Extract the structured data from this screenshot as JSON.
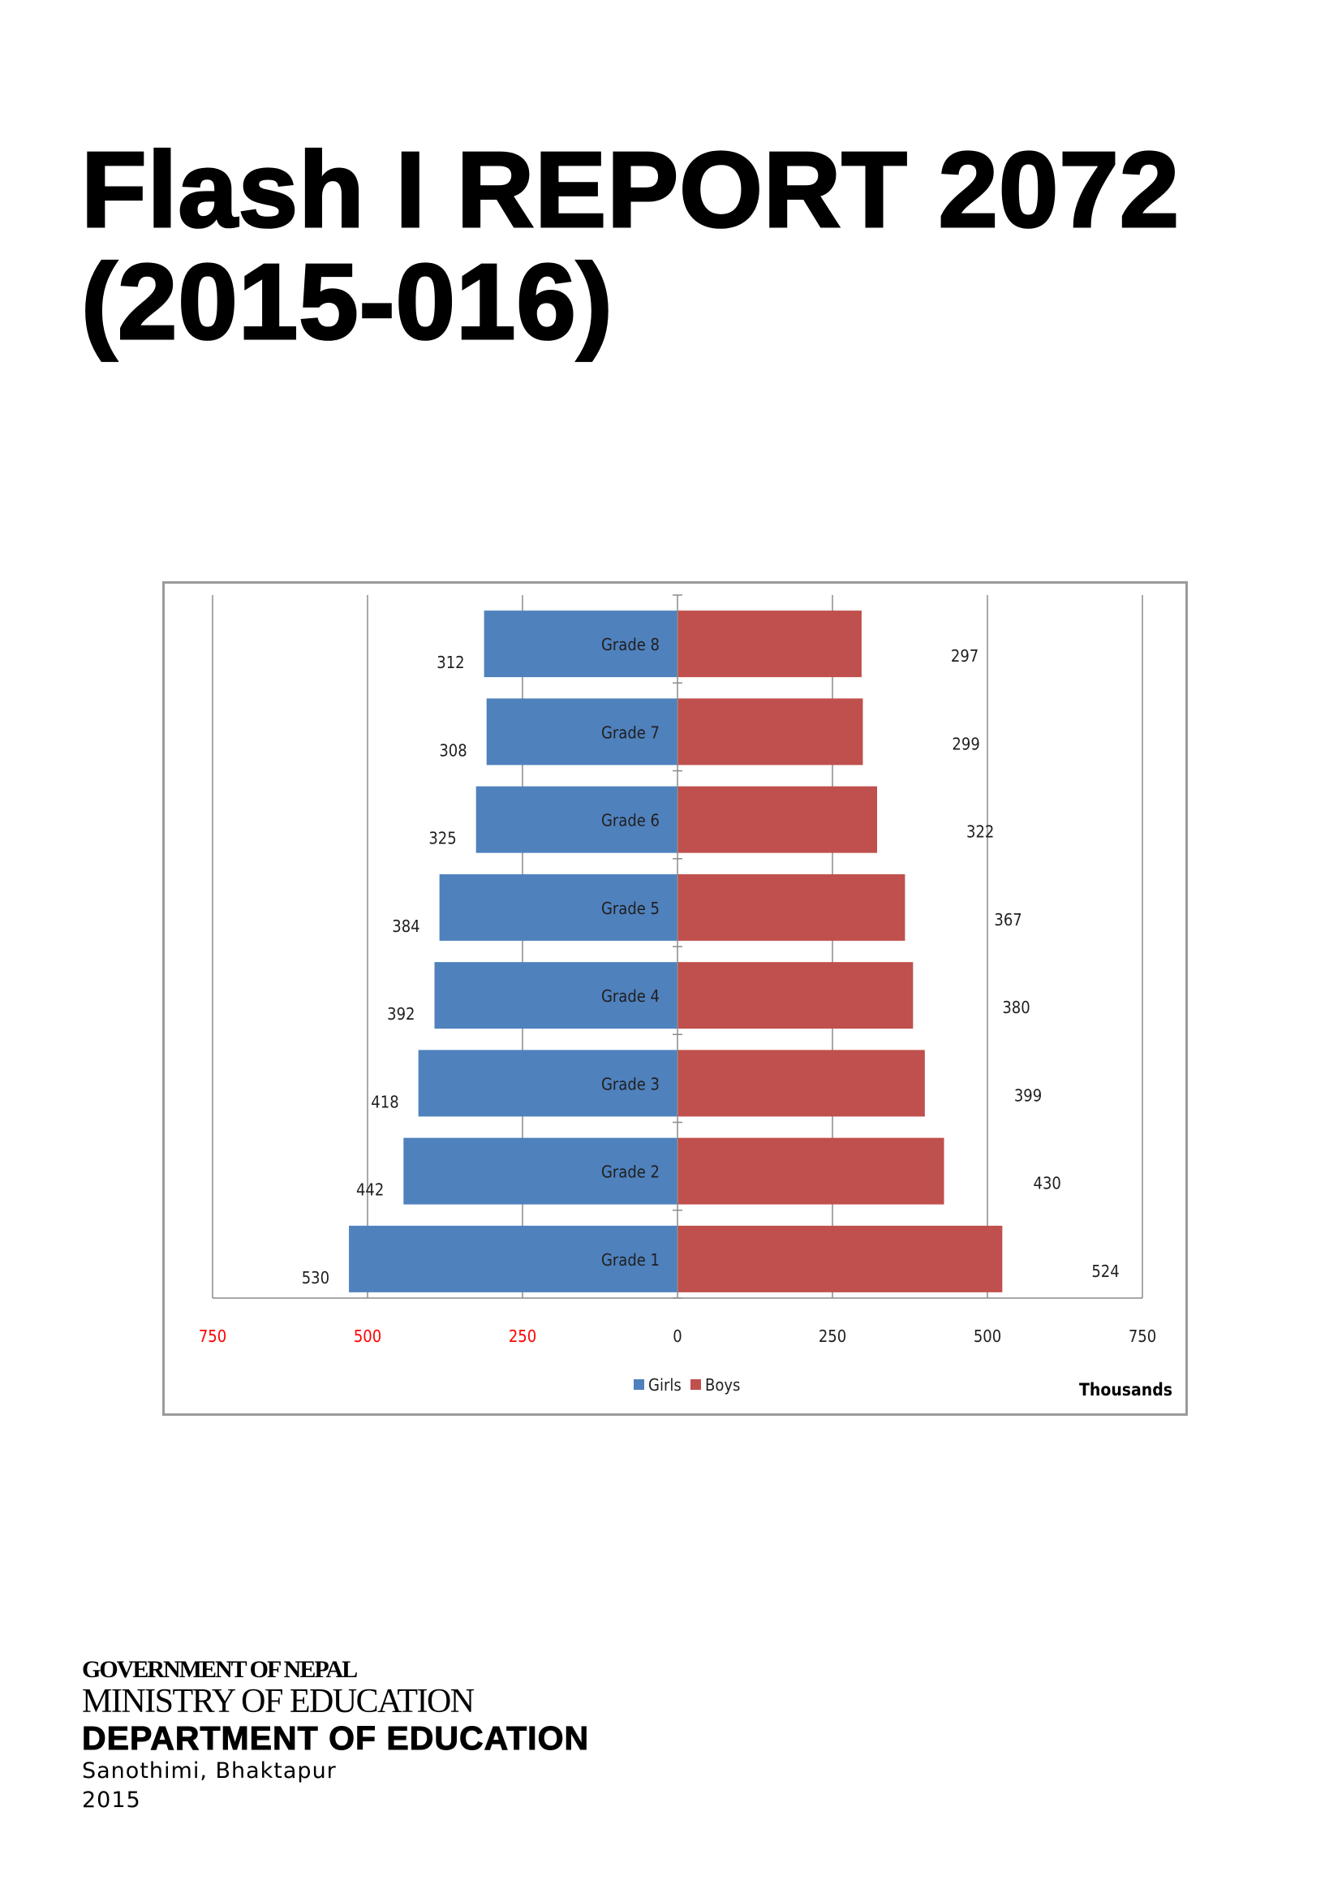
{
  "document": {
    "title_line1": "Flash I REPORT 2072",
    "title_line2": "(2015-016)"
  },
  "chart_data": {
    "type": "bar",
    "orientation": "horizontal",
    "layout": "population-pyramid",
    "categories": [
      "Grade 1",
      "Grade 2",
      "Grade 3",
      "Grade 4",
      "Grade 5",
      "Grade 6",
      "Grade 7",
      "Grade 8"
    ],
    "series": [
      {
        "name": "Girls",
        "side": "left",
        "color": "#4f81bd",
        "values": [
          530,
          442,
          418,
          392,
          384,
          325,
          308,
          312
        ]
      },
      {
        "name": "Boys",
        "side": "right",
        "color": "#c0504d",
        "values": [
          524,
          430,
          399,
          380,
          367,
          322,
          299,
          297
        ]
      }
    ],
    "x_ticks_left": [
      "750",
      "500",
      "250"
    ],
    "x_ticks_right": [
      "0",
      "250",
      "500",
      "750"
    ],
    "xlim": [
      -750,
      750
    ],
    "left_tick_color": "#ff0000",
    "xlabel": "Thousands",
    "legend": [
      "Girls",
      "Boys"
    ],
    "legend_position": "bottom",
    "grid": true
  },
  "footer": {
    "government": "GOVERNMENT OF NEPAL",
    "ministry": "MINISTRY OF EDUCATION",
    "department": "DEPARTMENT OF EDUCATION",
    "address": "Sanothimi, Bhaktapur",
    "year": "2015"
  }
}
